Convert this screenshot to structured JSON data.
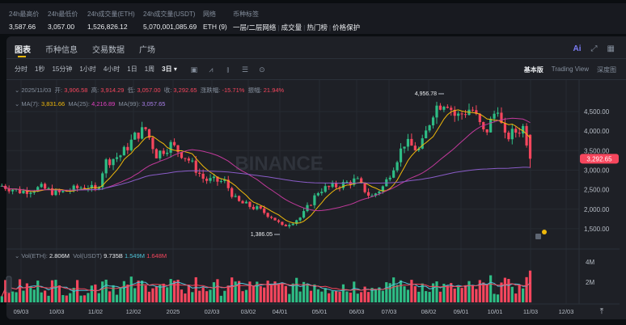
{
  "stats": [
    {
      "label": "24h最高价",
      "value": "3,587.66"
    },
    {
      "label": "24h最低价",
      "value": "3,057.00"
    },
    {
      "label": "24h成交量(ETH)",
      "value": "1,526,826.12"
    },
    {
      "label": "24h成交量(USDT)",
      "value": "5,070,001,085.69"
    },
    {
      "label": "网络",
      "value": "ETH (9)"
    }
  ],
  "coin_tags": {
    "label": "币种标签",
    "items": [
      "一层/二层网络",
      "成交量",
      "热门榜",
      "价格保护"
    ]
  },
  "tabs": [
    "图表",
    "币种信息",
    "交易数据",
    "广场"
  ],
  "intervals": [
    "分时",
    "1秒",
    "15分钟",
    "1小时",
    "4小时",
    "1日",
    "1周",
    "3日 ▾"
  ],
  "toolbar_icons": [
    "calendar-icon",
    "indicator-icon",
    "candle-type-icon",
    "settings-list-icon",
    "target-icon"
  ],
  "views": [
    "基本版",
    "Trading View",
    "深度图"
  ],
  "top_icons": {
    "ai": "Ai",
    "expand": "⤢",
    "layout": "▦"
  },
  "ohlc": {
    "date": "2025/11/03",
    "open_label": "开:",
    "open": "3,906.58",
    "high_label": "高:",
    "high": "3,914.29",
    "low_label": "低:",
    "low": "3,057.00",
    "close_label": "收:",
    "close": "3,292.65",
    "change_label": "涨跌幅:",
    "change": "-15.71%",
    "amp_label": "振幅:",
    "amp": "21.94%"
  },
  "ma": {
    "ma7_label": "MA(7):",
    "ma7": "3,831.66",
    "ma25_label": "MA(25):",
    "ma25": "4,216.89",
    "ma99_label": "MA(99):",
    "ma99": "3,057.65"
  },
  "vol": {
    "eth_label": "Vol(ETH):",
    "eth": "2.806M",
    "usdt_label": "Vol(USDT)",
    "usdt": "9.735B",
    "ma1": "1.549M",
    "ma2": "1.648M"
  },
  "watermark": "BINANCE",
  "colors": {
    "up": "#2ebd85",
    "down": "#f6465d",
    "ma7": "#f0b90b",
    "ma25": "#c0399a",
    "ma99": "#8a5cc8",
    "volma1": "#4fc3d7",
    "volma2": "#f6465d"
  },
  "chart_data": {
    "type": "candlestick",
    "interval": "3日",
    "price_ticks": [
      "4,500.00",
      "4,000.00",
      "3,500.00",
      "3,000.00",
      "2,500.00",
      "2,000.00",
      "1,500.00"
    ],
    "price_tick_values": [
      4500,
      4000,
      3500,
      3000,
      2500,
      2000,
      1500
    ],
    "current_price": "3,292.65",
    "high_marker": "4,956.78",
    "low_marker": "1,386.05",
    "volume_ticks": [
      "4M",
      "2M"
    ],
    "x_ticks": [
      "09/03",
      "10/03",
      "11/02",
      "12/02",
      "2025",
      "02/03",
      "03/02",
      "04/01",
      "05/01",
      "06/03",
      "07/03",
      "08/02",
      "09/01",
      "10/01",
      "11/03",
      "12/03"
    ],
    "approx_closes": [
      [
        "2024-08-18",
        2600
      ],
      [
        "2024-09-03",
        2450
      ],
      [
        "2024-09-20",
        2550
      ],
      [
        "2024-10-03",
        2400
      ],
      [
        "2024-10-28",
        2600
      ],
      [
        "2024-11-05",
        2450
      ],
      [
        "2024-11-12",
        3200
      ],
      [
        "2024-11-26",
        3400
      ],
      [
        "2024-12-08",
        3900
      ],
      [
        "2024-12-16",
        4050
      ],
      [
        "2024-12-25",
        3400
      ],
      [
        "2025-01-06",
        3650
      ],
      [
        "2025-01-20",
        3300
      ],
      [
        "2025-02-03",
        2750
      ],
      [
        "2025-02-20",
        2700
      ],
      [
        "2025-03-02",
        2200
      ],
      [
        "2025-03-20",
        2000
      ],
      [
        "2025-04-01",
        1800
      ],
      [
        "2025-04-09",
        1550
      ],
      [
        "2025-04-25",
        1800
      ],
      [
        "2025-05-10",
        2500
      ],
      [
        "2025-05-25",
        2600
      ],
      [
        "2025-06-10",
        2750
      ],
      [
        "2025-06-22",
        2300
      ],
      [
        "2025-07-03",
        2600
      ],
      [
        "2025-07-20",
        3700
      ],
      [
        "2025-08-02",
        3500
      ],
      [
        "2025-08-14",
        4600
      ],
      [
        "2025-08-24",
        4800
      ],
      [
        "2025-09-01",
        4350
      ],
      [
        "2025-09-14",
        4600
      ],
      [
        "2025-09-25",
        3900
      ],
      [
        "2025-10-06",
        4650
      ],
      [
        "2025-10-11",
        3800
      ],
      [
        "2025-10-27",
        4100
      ],
      [
        "2025-11-03",
        3292.65
      ]
    ]
  }
}
